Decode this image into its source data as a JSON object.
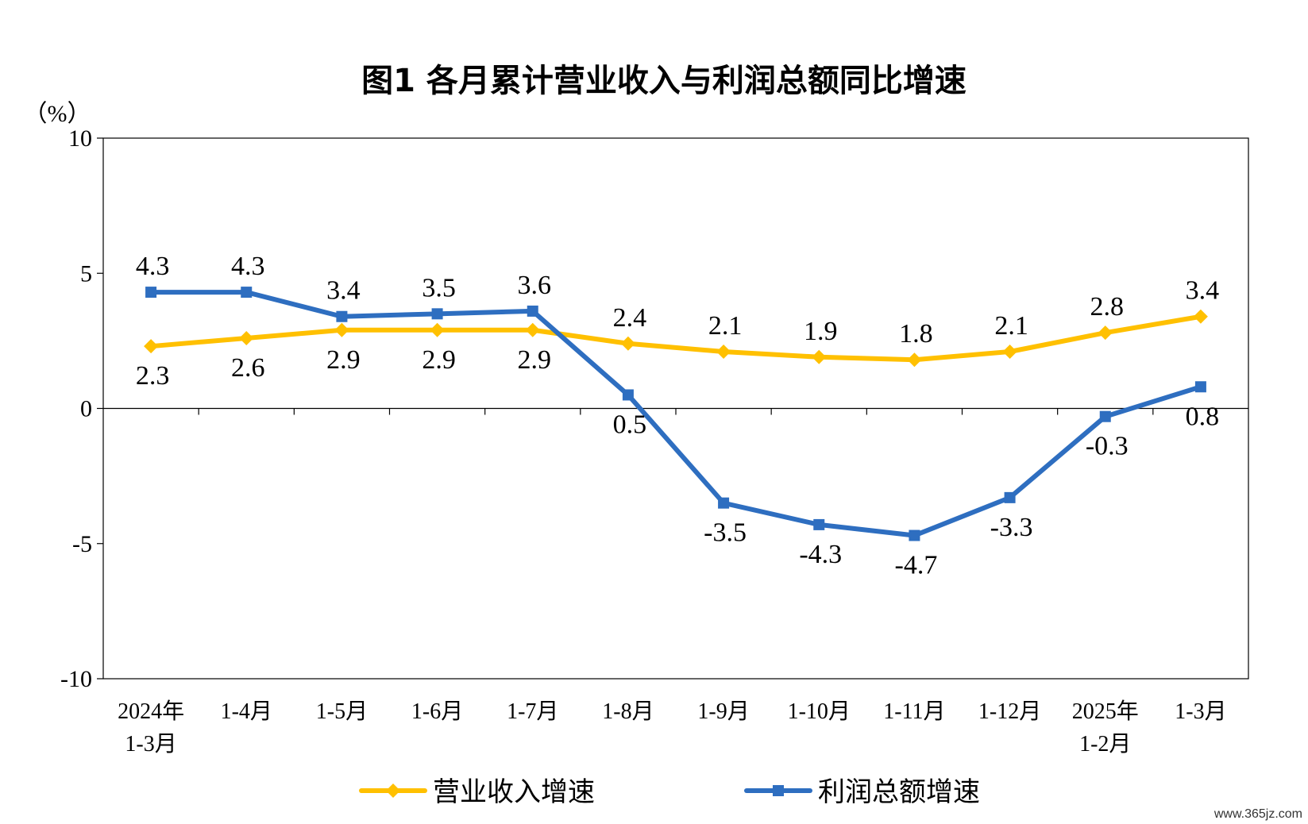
{
  "chart_data": {
    "type": "line",
    "title": "图1  各月累计营业收入与利润总额同比增速",
    "ylabel": "（%）",
    "ylim": [
      -10,
      10
    ],
    "yticks": [
      10,
      5,
      0,
      -5,
      -10
    ],
    "categories": [
      [
        "2024年",
        "1-3月"
      ],
      [
        "1-4月"
      ],
      [
        "1-5月"
      ],
      [
        "1-6月"
      ],
      [
        "1-7月"
      ],
      [
        "1-8月"
      ],
      [
        "1-9月"
      ],
      [
        "1-10月"
      ],
      [
        "1-11月"
      ],
      [
        "1-12月"
      ],
      [
        "2025年",
        "1-2月"
      ],
      [
        "1-3月"
      ]
    ],
    "series": [
      {
        "name": "营业收入增速",
        "color": "#FFC000",
        "marker": "diamond",
        "values": [
          2.3,
          2.6,
          2.9,
          2.9,
          2.9,
          2.4,
          2.1,
          1.9,
          1.8,
          2.1,
          2.8,
          3.4
        ],
        "labels": [
          "2.3",
          "2.6",
          "2.9",
          "2.9",
          "2.9",
          "2.4",
          "2.1",
          "1.9",
          "1.8",
          "2.1",
          "2.8",
          "3.4"
        ],
        "label_pos": [
          "below",
          "below",
          "below",
          "below",
          "below",
          "above",
          "above",
          "above",
          "above",
          "above",
          "above",
          "above"
        ]
      },
      {
        "name": "利润总额增速",
        "color": "#2E6EC0",
        "marker": "square",
        "values": [
          4.3,
          4.3,
          3.4,
          3.5,
          3.6,
          0.5,
          -3.5,
          -4.3,
          -4.7,
          -3.3,
          -0.3,
          0.8
        ],
        "labels": [
          "4.3",
          "4.3",
          "3.4",
          "3.5",
          "3.6",
          "0.5",
          "-3.5",
          "-4.3",
          "-4.7",
          "-3.3",
          "-0.3",
          "0.8"
        ],
        "label_pos": [
          "above",
          "above",
          "above",
          "above",
          "above",
          "below",
          "below",
          "below",
          "below",
          "below",
          "below",
          "below"
        ]
      }
    ],
    "legend": "bottom"
  },
  "watermark": "www.365jz.com"
}
